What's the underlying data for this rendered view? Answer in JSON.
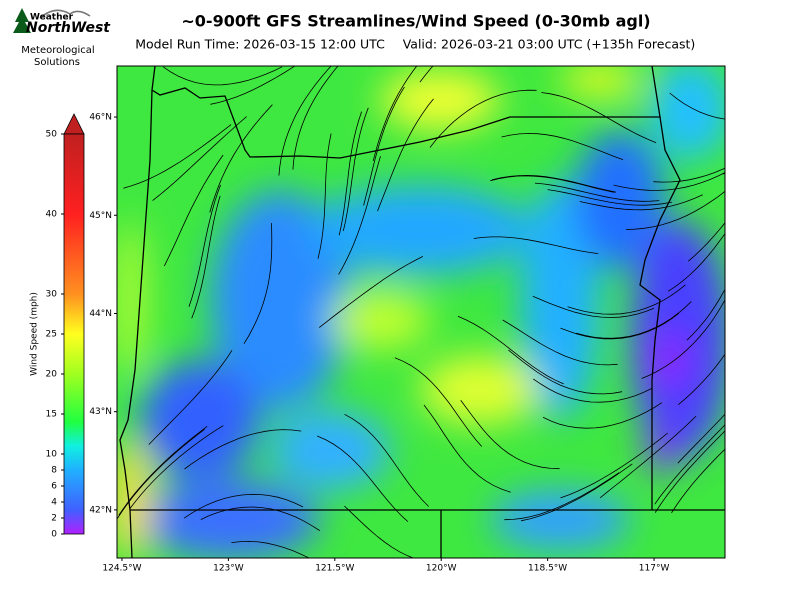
{
  "header": {
    "title": "~0-900ft GFS Streamlines/Wind Speed (0-30mb agl)",
    "run_time": "Model Run Time: 2026-03-15 12:00 UTC",
    "valid": "Valid: 2026-03-21 03:00 UTC  (+135h Forecast)"
  },
  "logo": {
    "line1": "Weather",
    "line2": "NorthWest",
    "caption": [
      "Meteorological",
      "Solutions"
    ]
  },
  "colorbar": {
    "label": "Wind Speed (mph)",
    "lim": [
      0,
      50
    ],
    "ticks": [
      0,
      2,
      4,
      6,
      8,
      10,
      15,
      20,
      25,
      30,
      40,
      50
    ]
  },
  "map": {
    "xlim": [
      -124.57,
      -116.0
    ],
    "ylim": [
      41.51,
      46.52
    ],
    "xticks": [
      {
        "value": -124.5,
        "label": "124.5°W"
      },
      {
        "value": -123,
        "label": "123°W"
      },
      {
        "value": -121.5,
        "label": "121.5°W"
      },
      {
        "value": -120,
        "label": "120°W"
      },
      {
        "value": -118.5,
        "label": "118.5°W"
      },
      {
        "value": -117,
        "label": "117°W"
      }
    ],
    "yticks": [
      {
        "value": 42,
        "label": "42°N"
      },
      {
        "value": 43,
        "label": "43°N"
      },
      {
        "value": 44,
        "label": "44°N"
      },
      {
        "value": 45,
        "label": "45°N"
      },
      {
        "value": 46,
        "label": "46°N"
      }
    ]
  }
}
